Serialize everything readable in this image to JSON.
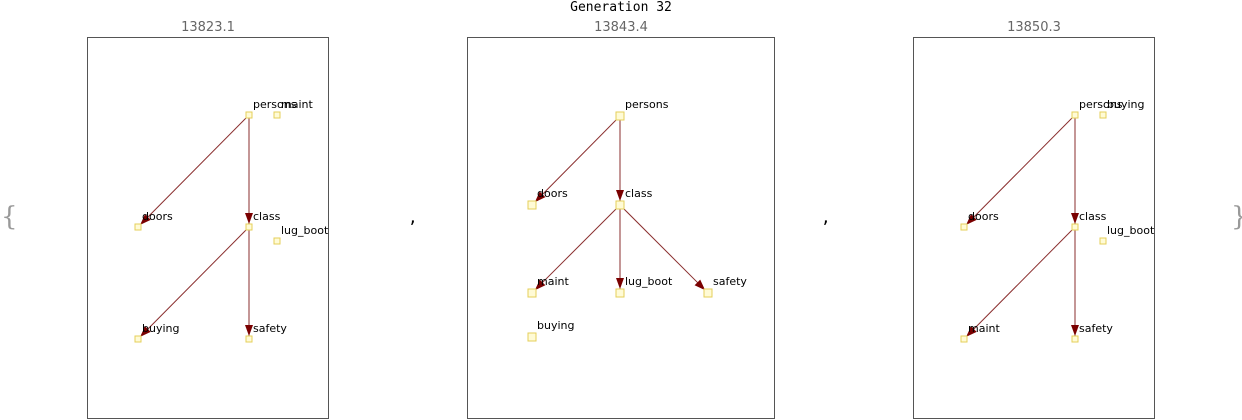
{
  "title": "Generation 32",
  "brace_open": "{",
  "brace_close": "}",
  "separator": ",",
  "accent_colors": {
    "edge": "#8a2e2e",
    "arrow": "#7a0000",
    "node_fill": "#fffbd6",
    "node_stroke": "#e4cf5a"
  },
  "graphs": [
    {
      "score": "13823.1",
      "nodes": [
        "persons",
        "maint",
        "doors",
        "class",
        "lug_boot",
        "buying",
        "safety"
      ],
      "edges": [
        [
          "persons",
          "doors"
        ],
        [
          "persons",
          "class"
        ],
        [
          "class",
          "buying"
        ],
        [
          "class",
          "safety"
        ]
      ]
    },
    {
      "score": "13843.4",
      "nodes": [
        "persons",
        "doors",
        "class",
        "maint",
        "lug_boot",
        "safety",
        "buying"
      ],
      "edges": [
        [
          "persons",
          "doors"
        ],
        [
          "persons",
          "class"
        ],
        [
          "class",
          "maint"
        ],
        [
          "class",
          "lug_boot"
        ],
        [
          "class",
          "safety"
        ]
      ]
    },
    {
      "score": "13850.3",
      "nodes": [
        "persons",
        "buying",
        "doors",
        "class",
        "lug_boot",
        "maint",
        "safety"
      ],
      "edges": [
        [
          "persons",
          "doors"
        ],
        [
          "persons",
          "class"
        ],
        [
          "class",
          "maint"
        ],
        [
          "class",
          "safety"
        ]
      ]
    }
  ]
}
